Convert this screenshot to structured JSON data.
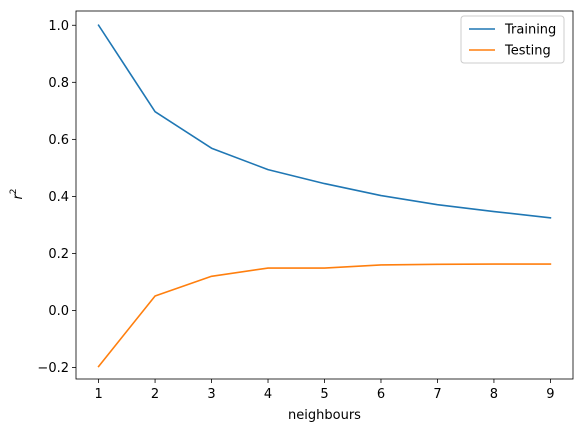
{
  "chart_data": {
    "type": "line",
    "xlabel": "neighbours",
    "ylabel_base": "r",
    "ylabel_sup": "2",
    "xlim": [
      0.6,
      9.4
    ],
    "ylim": [
      -0.24,
      1.05
    ],
    "xticks": [
      1,
      2,
      3,
      4,
      5,
      6,
      7,
      8,
      9
    ],
    "xtick_labels": [
      "1",
      "2",
      "3",
      "4",
      "5",
      "6",
      "7",
      "8",
      "9"
    ],
    "yticks": [
      -0.2,
      0.0,
      0.2,
      0.4,
      0.6,
      0.8,
      1.0
    ],
    "ytick_labels": [
      "−0.2",
      "0.0",
      "0.2",
      "0.4",
      "0.6",
      "0.8",
      "1.0"
    ],
    "grid": false,
    "legend_position": "top-right",
    "x": [
      1,
      2,
      3,
      4,
      5,
      6,
      7,
      8,
      9
    ],
    "series": [
      {
        "name": "Training",
        "color": "#1f77b4",
        "values": [
          1.0,
          0.697,
          0.569,
          0.494,
          0.445,
          0.403,
          0.371,
          0.347,
          0.325
        ]
      },
      {
        "name": "Testing",
        "color": "#ff7f0e",
        "values": [
          -0.196,
          0.051,
          0.12,
          0.149,
          0.149,
          0.16,
          0.162,
          0.163,
          0.163
        ]
      }
    ]
  }
}
